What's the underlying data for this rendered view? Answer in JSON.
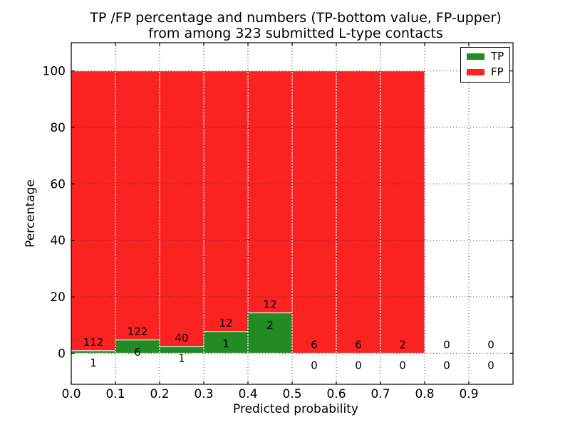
{
  "chart_data": {
    "type": "bar",
    "stacked": true,
    "orientation": "vertical",
    "title_line1": "TP /FP percentage and numbers (TP-bottom value, FP-upper)",
    "title_line2": "from among 323 submitted L-type contacts",
    "xlabel": "Predicted probability",
    "ylabel": "Percentage",
    "total_contacts": 323,
    "xlim": [
      0.0,
      1.0
    ],
    "ylim": [
      -11,
      110
    ],
    "xticks": [
      {
        "v": 0.0,
        "label": "0.0"
      },
      {
        "v": 0.1,
        "label": "0.1"
      },
      {
        "v": 0.2,
        "label": "0.2"
      },
      {
        "v": 0.3,
        "label": "0.3"
      },
      {
        "v": 0.4,
        "label": "0.4"
      },
      {
        "v": 0.5,
        "label": "0.5"
      },
      {
        "v": 0.6,
        "label": "0.6"
      },
      {
        "v": 0.7,
        "label": "0.7"
      },
      {
        "v": 0.8,
        "label": "0.8"
      },
      {
        "v": 0.9,
        "label": "0.9"
      }
    ],
    "yticks": [
      {
        "v": 0,
        "label": "0"
      },
      {
        "v": 20,
        "label": "20"
      },
      {
        "v": 40,
        "label": "40"
      },
      {
        "v": 60,
        "label": "60"
      },
      {
        "v": 80,
        "label": "80"
      },
      {
        "v": 100,
        "label": "100"
      }
    ],
    "grid": {
      "style": "dotted",
      "color": "#3c3c3c",
      "axisbelow": false
    },
    "bar_edge_color": "#ffffff",
    "legend_position": "upper right",
    "legend": [
      {
        "label": "TP",
        "color": "#228b22"
      },
      {
        "label": "FP",
        "color": "#fb2222"
      }
    ],
    "bins": [
      {
        "range": [
          0.0,
          0.1
        ],
        "tp": 1,
        "fp": 112,
        "tp_percent": 0.88
      },
      {
        "range": [
          0.1,
          0.2
        ],
        "tp": 6,
        "fp": 122,
        "tp_percent": 4.69
      },
      {
        "range": [
          0.2,
          0.3
        ],
        "tp": 1,
        "fp": 40,
        "tp_percent": 2.44
      },
      {
        "range": [
          0.3,
          0.4
        ],
        "tp": 1,
        "fp": 12,
        "tp_percent": 7.69
      },
      {
        "range": [
          0.4,
          0.5
        ],
        "tp": 2,
        "fp": 12,
        "tp_percent": 14.29
      },
      {
        "range": [
          0.5,
          0.6
        ],
        "tp": 0,
        "fp": 6,
        "tp_percent": 0.0
      },
      {
        "range": [
          0.6,
          0.7
        ],
        "tp": 0,
        "fp": 6,
        "tp_percent": 0.0
      },
      {
        "range": [
          0.7,
          0.8
        ],
        "tp": 0,
        "fp": 2,
        "tp_percent": 0.0
      },
      {
        "range": [
          0.8,
          0.9
        ],
        "tp": 0,
        "fp": 0,
        "tp_percent": null
      },
      {
        "range": [
          0.9,
          1.0
        ],
        "tp": 0,
        "fp": 0,
        "tp_percent": null
      }
    ]
  }
}
